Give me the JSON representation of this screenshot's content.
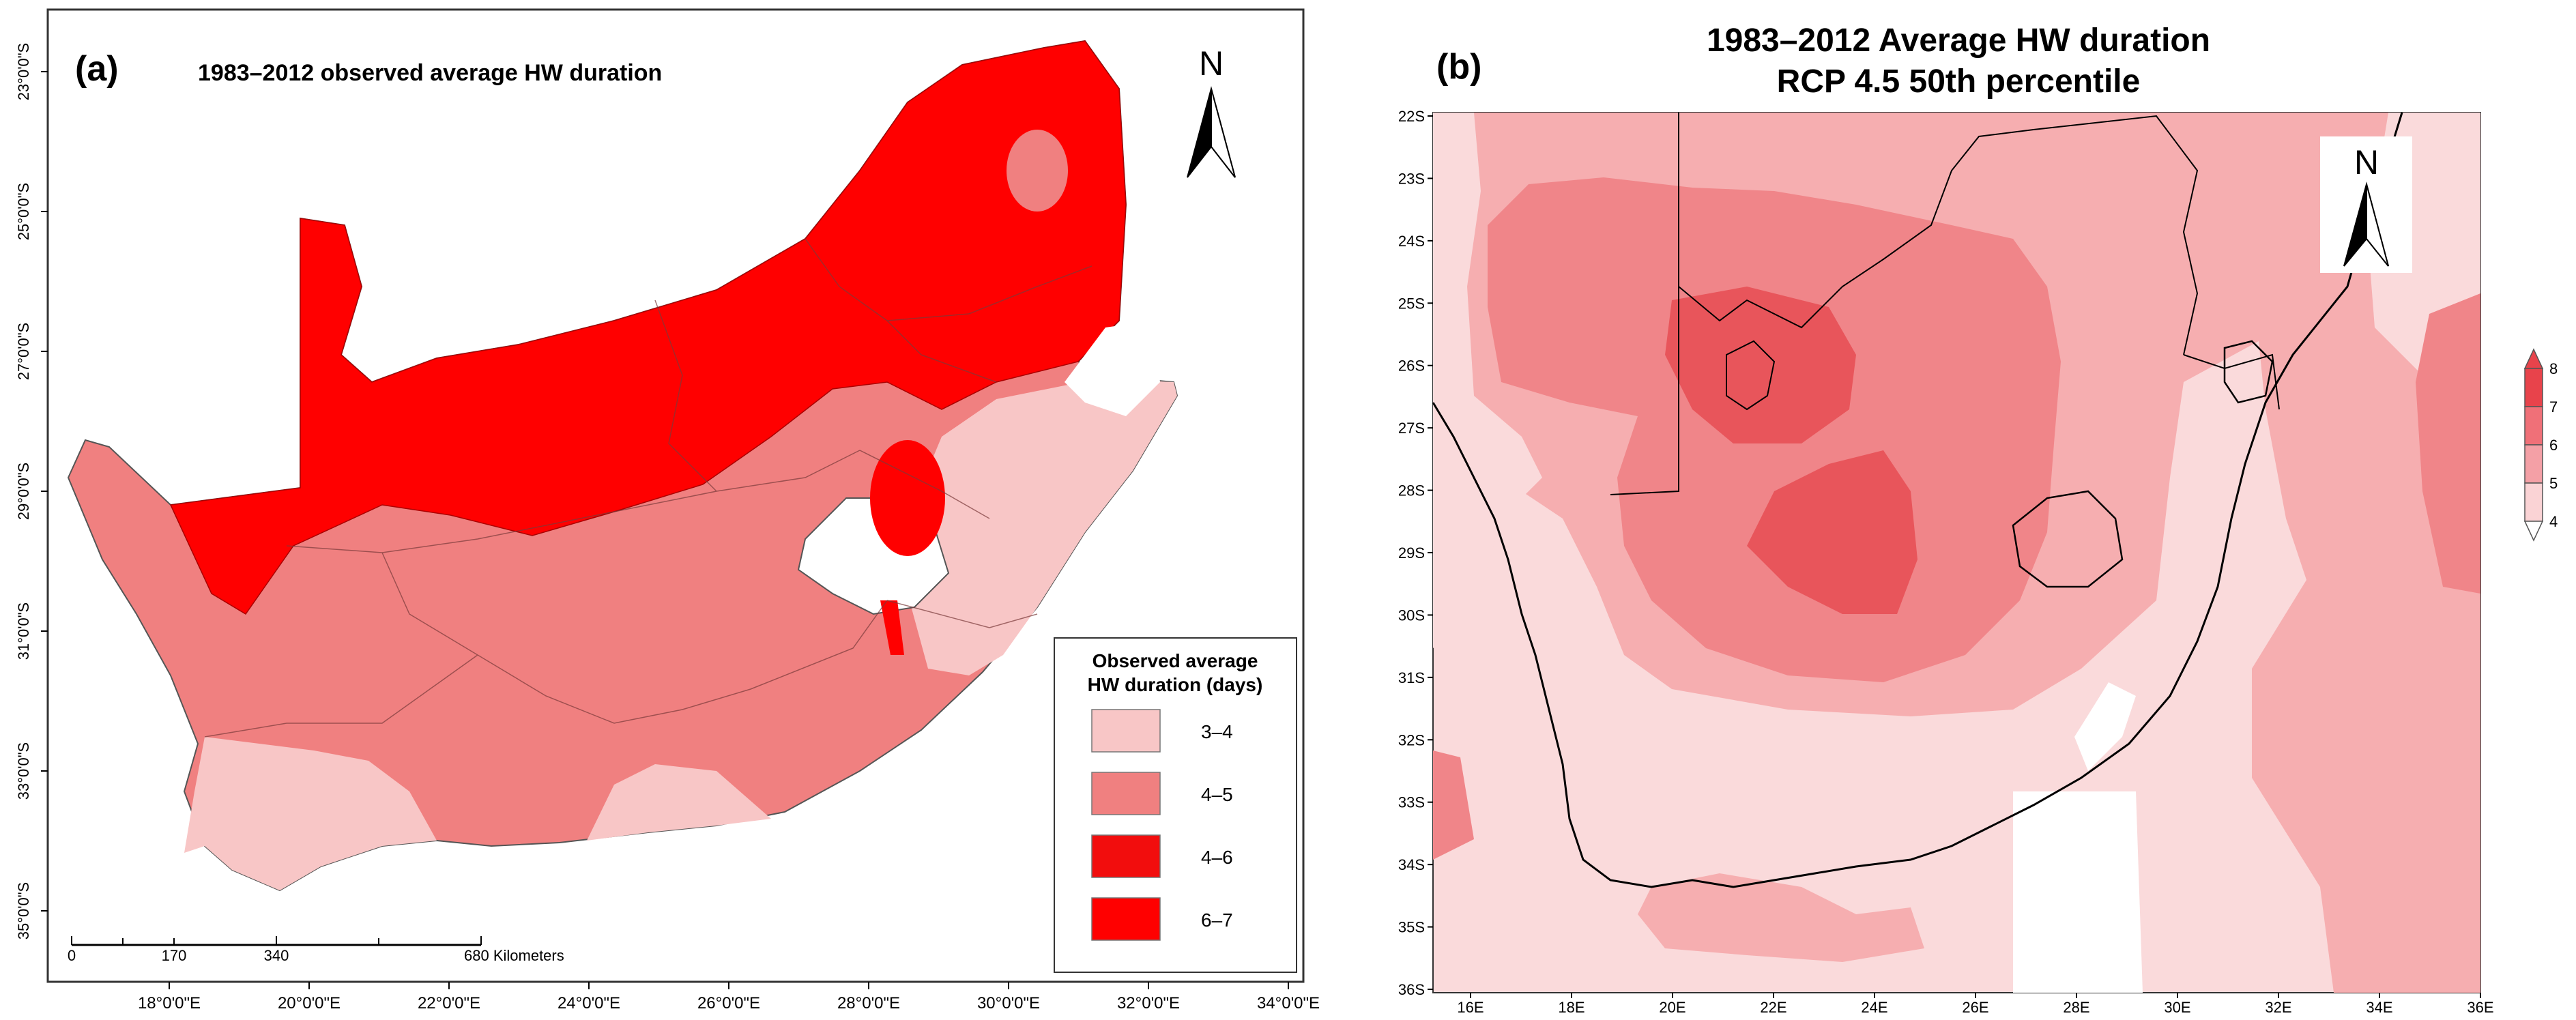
{
  "panel_a": {
    "label": "(a)",
    "title": "1983–2012 observed average HW duration",
    "north": "N",
    "lat_ticks": [
      "23°0'0\"S",
      "25°0'0\"S",
      "27°0'0\"S",
      "29°0'0\"S",
      "31°0'0\"S",
      "33°0'0\"S",
      "35°0'0\"S"
    ],
    "lon_ticks": [
      "18°0'0\"E",
      "20°0'0\"E",
      "22°0'0\"E",
      "24°0'0\"E",
      "26°0'0\"E",
      "28°0'0\"E",
      "30°0'0\"E",
      "32°0'0\"E",
      "34°0'0\"E"
    ],
    "scale_bar": {
      "labels": [
        "0",
        "170",
        "340",
        "680 Kilometers"
      ]
    },
    "legend": {
      "title_line1": "Observed average",
      "title_line2": "HW duration (days)",
      "items": [
        {
          "label": "3–4",
          "color": "#f8c6c6"
        },
        {
          "label": "4–5",
          "color": "#f08080"
        },
        {
          "label": "4–6",
          "color": "#f20d0d"
        },
        {
          "label": "6–7",
          "color": "#ff0000"
        }
      ]
    },
    "colors": {
      "c34": "#f8c6c6",
      "c45": "#f08080",
      "c46": "#f20d0d",
      "c67": "#ff0000",
      "boundary": "#555555"
    }
  },
  "panel_b": {
    "label": "(b)",
    "title_line1": "1983–2012 Average HW duration",
    "title_line2": "RCP 4.5 50th percentile",
    "north": "N",
    "lat_ticks": [
      "22S",
      "23S",
      "24S",
      "25S",
      "26S",
      "27S",
      "28S",
      "29S",
      "30S",
      "31S",
      "32S",
      "33S",
      "34S",
      "35S",
      "36S"
    ],
    "lon_ticks": [
      "16E",
      "18E",
      "20E",
      "22E",
      "24E",
      "26E",
      "28E",
      "30E",
      "32E",
      "34E",
      "36E"
    ],
    "colorbar": {
      "labels": [
        "8",
        "7",
        "6",
        "5",
        "4"
      ],
      "colors": [
        "#e8434b",
        "#f07078",
        "#f4a0a6",
        "#fad3d5",
        "#ffffff"
      ]
    },
    "colors": {
      "level5": "#fadadb",
      "level6": "#f6aeb0",
      "level7": "#f08589",
      "level8": "#e8555b"
    }
  }
}
